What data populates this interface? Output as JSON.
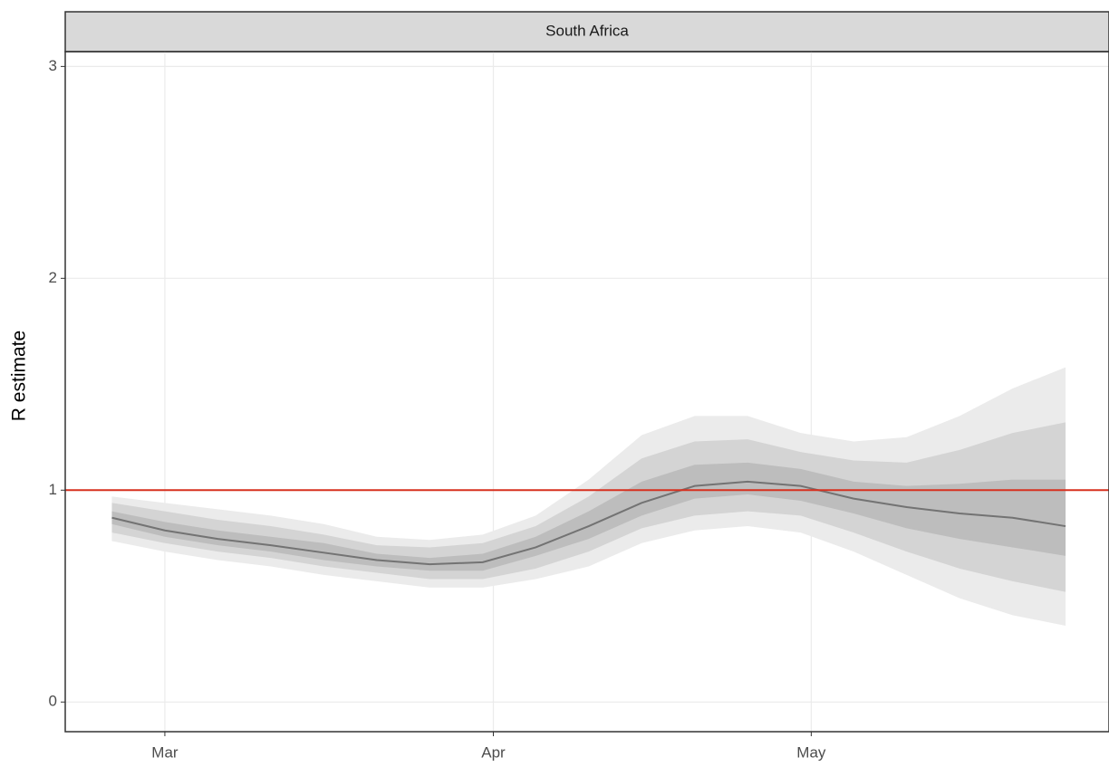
{
  "chart_data": {
    "type": "fan",
    "panel_title": "South Africa",
    "y_label": "R estimate",
    "x": [
      -5,
      0,
      5,
      10,
      15,
      20,
      25,
      30,
      35,
      40,
      45,
      50,
      55,
      60,
      65,
      70,
      75,
      80,
      85
    ],
    "xlim": [
      -9.4,
      89.1
    ],
    "xticks": [
      {
        "value": 0,
        "label": "Mar"
      },
      {
        "value": 31,
        "label": "Apr"
      },
      {
        "value": 61,
        "label": "May"
      }
    ],
    "ylim": [
      -0.14,
      3.07
    ],
    "yticks": [
      0,
      1,
      2,
      3
    ],
    "grid": true,
    "median": {
      "color": "#737373",
      "values": [
        0.87,
        0.81,
        0.77,
        0.74,
        0.705,
        0.67,
        0.65,
        0.66,
        0.73,
        0.83,
        0.94,
        1.02,
        1.04,
        1.02,
        0.96,
        0.92,
        0.89,
        0.87,
        0.83
      ]
    },
    "bands": [
      {
        "color": "#ebebeb",
        "upper": [
          0.97,
          0.94,
          0.91,
          0.88,
          0.84,
          0.78,
          0.765,
          0.79,
          0.88,
          1.05,
          1.26,
          1.35,
          1.35,
          1.27,
          1.23,
          1.25,
          1.35,
          1.48,
          1.58
        ],
        "lower": [
          0.76,
          0.71,
          0.67,
          0.64,
          0.6,
          0.57,
          0.54,
          0.54,
          0.58,
          0.64,
          0.75,
          0.81,
          0.83,
          0.8,
          0.71,
          0.6,
          0.49,
          0.41,
          0.36
        ]
      },
      {
        "color": "#d4d4d4",
        "upper": [
          0.94,
          0.9,
          0.86,
          0.83,
          0.79,
          0.74,
          0.73,
          0.75,
          0.83,
          0.97,
          1.15,
          1.23,
          1.24,
          1.18,
          1.14,
          1.13,
          1.19,
          1.27,
          1.32
        ],
        "lower": [
          0.8,
          0.75,
          0.71,
          0.68,
          0.64,
          0.61,
          0.58,
          0.58,
          0.63,
          0.71,
          0.82,
          0.88,
          0.9,
          0.88,
          0.8,
          0.71,
          0.63,
          0.57,
          0.52
        ]
      },
      {
        "color": "#bdbdbd",
        "upper": [
          0.9,
          0.85,
          0.81,
          0.78,
          0.75,
          0.7,
          0.68,
          0.7,
          0.78,
          0.9,
          1.04,
          1.12,
          1.13,
          1.1,
          1.04,
          1.02,
          1.03,
          1.05,
          1.05
        ],
        "lower": [
          0.84,
          0.78,
          0.74,
          0.71,
          0.67,
          0.64,
          0.62,
          0.62,
          0.69,
          0.77,
          0.88,
          0.96,
          0.98,
          0.95,
          0.89,
          0.82,
          0.77,
          0.73,
          0.69
        ]
      }
    ],
    "reference_line": {
      "value": 1,
      "color": "#d7301f"
    }
  }
}
